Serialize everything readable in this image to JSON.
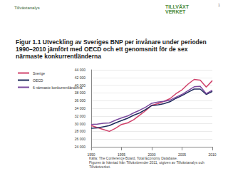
{
  "header": {
    "left_logo": "Tillväxtanalys",
    "right_logo": [
      "TILLVÄXT",
      "VERKET"
    ],
    "page": "1"
  },
  "chart_data": {
    "type": "line",
    "title": "Figur 1.1 Utveckling av Sveriges BNP per invånare under perioden 1990–2010 jämfört med OECD och ett genomsnitt för de sex närmaste konkurrentländerna",
    "x": [
      1990,
      1991,
      1992,
      1993,
      1994,
      1995,
      1996,
      1997,
      1998,
      1999,
      2000,
      2001,
      2002,
      2003,
      2004,
      2005,
      2006,
      2007,
      2008,
      2009,
      2010
    ],
    "series": [
      {
        "name": "Sverige",
        "color": "#d0426b",
        "values": [
          29500,
          29000,
          28500,
          28000,
          28800,
          29800,
          30200,
          31000,
          32200,
          33400,
          34800,
          35200,
          35800,
          36500,
          37800,
          38800,
          40300,
          41500,
          41300,
          39500,
          41200
        ]
      },
      {
        "name": "OECD",
        "color": "#1f2a5c",
        "values": [
          28800,
          28900,
          29200,
          29500,
          30200,
          30800,
          31400,
          32200,
          32800,
          33700,
          34700,
          34900,
          35200,
          35700,
          36600,
          37300,
          38200,
          39000,
          39000,
          37600,
          38400
        ]
      },
      {
        "name": "6 närmaste konkurrentländerna",
        "color": "#7b4a9e",
        "values": [
          29800,
          29900,
          30100,
          30200,
          30900,
          31500,
          32000,
          32800,
          33500,
          34300,
          35300,
          35600,
          35800,
          36100,
          36900,
          37600,
          38600,
          39600,
          39700,
          37800,
          38700
        ]
      }
    ],
    "xlim": [
      1990,
      2010
    ],
    "xticks": [
      1990,
      1995,
      2000,
      2005,
      2010
    ],
    "ylim": [
      24000,
      44000
    ],
    "yticks": [
      {
        "value": 24000,
        "label": "24 000"
      },
      {
        "value": 26000,
        "label": "26 000"
      },
      {
        "value": 28000,
        "label": "28 000"
      },
      {
        "value": 30000,
        "label": "30 000"
      },
      {
        "value": 32000,
        "label": "32 000"
      },
      {
        "value": 34000,
        "label": "34 000"
      },
      {
        "value": 36000,
        "label": "36 000"
      },
      {
        "value": 38000,
        "label": "38 000"
      },
      {
        "value": 40000,
        "label": "40 000"
      },
      {
        "value": 42000,
        "label": "42 000"
      },
      {
        "value": 44000,
        "label": "44 000"
      }
    ],
    "grid": true,
    "legend": "left"
  },
  "footer": [
    "Källa: The Conference Board, Total Economy Database.",
    "Figuren är hämtad från Tillväxttrender 2011, utgiven av Tillväxtanalys och Tillväxtverket."
  ]
}
